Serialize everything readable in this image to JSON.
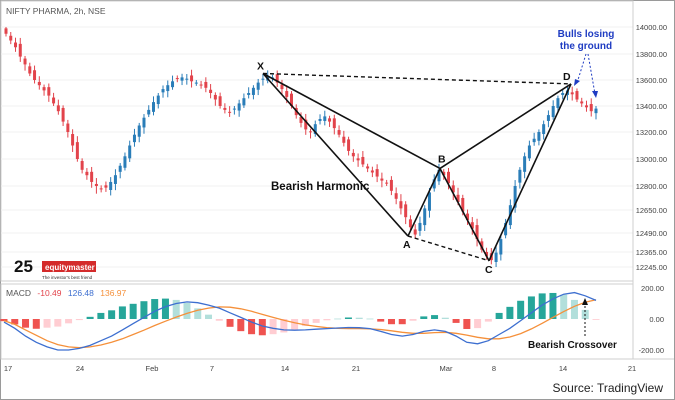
{
  "header": {
    "title": "NIFTY PHARMA, 2h, NSE"
  },
  "annotations": {
    "bulls_line1": "Bulls losing",
    "bulls_line2": "the ground",
    "pattern_label": "Bearish Harmonic",
    "crossover_label": "Bearish Crossover",
    "source": "Source: TradingView"
  },
  "logo": {
    "number": "25",
    "brand": "equitymaster",
    "tagline": "The investor's best friend"
  },
  "macd_legend": {
    "name": "MACD",
    "v1": "-10.49",
    "v2": "126.48",
    "v3": "136.97"
  },
  "colors": {
    "up": "#2a7db8",
    "down": "#e2434b",
    "signal_line": "#f5903a",
    "macd_line": "#3d6fd0",
    "hist_pos": "#26a69a",
    "hist_neg": "#ef5350",
    "annot_blue": "#1f3cc2"
  },
  "chart_data": [
    {
      "type": "candlestick",
      "title": "NIFTY PHARMA, 2h, NSE",
      "y_ticks": [
        "14000.00",
        "13800.00",
        "13600.00",
        "13400.00",
        "13200.00",
        "13000.00",
        "12800.00",
        "12650.00",
        "12490.00",
        "12365.00",
        "12245.00"
      ],
      "x_ticks": [
        "17",
        "24",
        "Feb",
        "7",
        "14",
        "21",
        "Mar",
        "8",
        "14",
        "21"
      ],
      "harmonic_points": [
        {
          "label": "X",
          "value": 13650
        },
        {
          "label": "A",
          "value": 12470
        },
        {
          "label": "B",
          "value": 12930
        },
        {
          "label": "C",
          "value": 12295
        },
        {
          "label": "D",
          "value": 13570
        }
      ],
      "closes": [
        13950,
        13900,
        13850,
        13780,
        13720,
        13650,
        13600,
        13560,
        13520,
        13480,
        13420,
        13360,
        13280,
        13200,
        13100,
        13000,
        12920,
        12880,
        12830,
        12800,
        12780,
        12790,
        12830,
        12880,
        12950,
        13020,
        13100,
        13180,
        13250,
        13310,
        13370,
        13430,
        13480,
        13530,
        13560,
        13590,
        13610,
        13620,
        13610,
        13590,
        13580,
        13560,
        13540,
        13500,
        13450,
        13400,
        13370,
        13350,
        13380,
        13420,
        13460,
        13500,
        13540,
        13580,
        13610,
        13630,
        13620,
        13580,
        13530,
        13470,
        13400,
        13330,
        13270,
        13220,
        13200,
        13260,
        13300,
        13320,
        13280,
        13230,
        13180,
        13120,
        13060,
        13020,
        12990,
        12960,
        12930,
        12900,
        12870,
        12840,
        12820,
        12770,
        12720,
        12660,
        12600,
        12530,
        12480,
        12560,
        12660,
        12760,
        12850,
        12920,
        12880,
        12820,
        12760,
        12700,
        12640,
        12580,
        12520,
        12450,
        12380,
        12330,
        12300,
        12360,
        12450,
        12560,
        12680,
        12800,
        12920,
        13020,
        13100,
        13150,
        13200,
        13260,
        13330,
        13400,
        13460,
        13500,
        13520,
        13490,
        13450,
        13420,
        13390,
        13360,
        13380
      ]
    },
    {
      "type": "bar",
      "title": "MACD",
      "y_ticks": [
        "200.00",
        "0.00",
        "-200.00"
      ],
      "macd_values": [
        -20,
        -60,
        -110,
        -150,
        -180,
        -200,
        -200,
        -190,
        -170,
        -140,
        -110,
        -70,
        -30,
        10,
        50,
        80,
        100,
        110,
        105,
        90,
        70,
        40,
        10,
        -20,
        -45,
        -60,
        -70,
        -72,
        -70,
        -66,
        -62,
        -58,
        -55,
        -56,
        -62,
        -80,
        -100,
        -110,
        -100,
        -80,
        -70,
        -80,
        -110,
        -150,
        -160,
        -140,
        -100,
        -60,
        -10,
        40,
        90,
        130,
        160,
        170,
        150,
        120
      ],
      "signal_values": [
        -10,
        -35,
        -70,
        -105,
        -140,
        -165,
        -180,
        -185,
        -180,
        -168,
        -150,
        -128,
        -100,
        -72,
        -42,
        -14,
        12,
        36,
        56,
        70,
        78,
        76,
        66,
        50,
        30,
        10,
        -8,
        -24,
        -38,
        -48,
        -56,
        -60,
        -62,
        -62,
        -64,
        -68,
        -76,
        -86,
        -92,
        -92,
        -88,
        -86,
        -92,
        -104,
        -118,
        -128,
        -128,
        -116,
        -94,
        -64,
        -28,
        10,
        48,
        82,
        108,
        124
      ],
      "legend_values": {
        "v1": "-10.49",
        "v2": "126.48",
        "v3": "136.97"
      }
    }
  ]
}
